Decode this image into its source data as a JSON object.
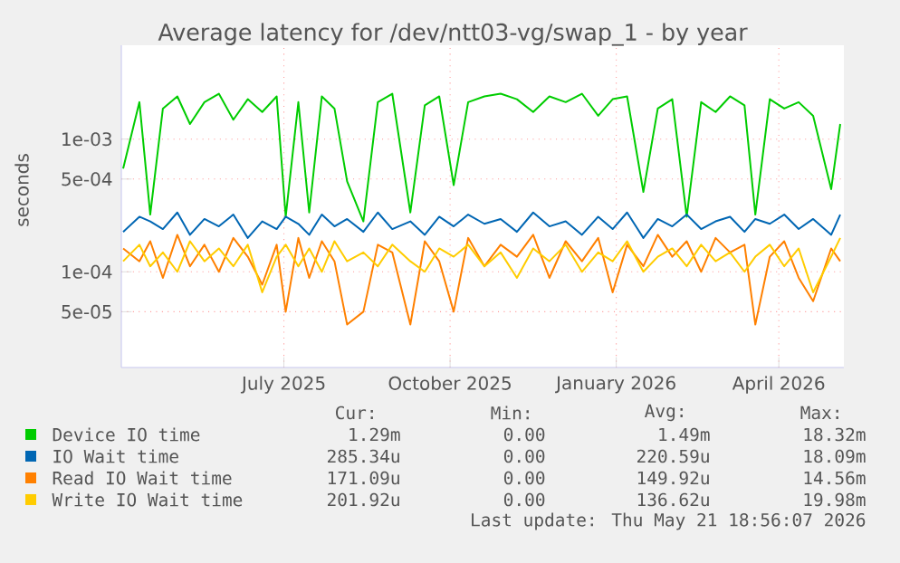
{
  "chart_data": {
    "type": "line",
    "title": "Average latency for /dev/ntt03-vg/swap_1 - by year",
    "ylabel": "seconds",
    "x": [
      "2025-04-03",
      "2025-04-12",
      "2025-04-18",
      "2025-04-25",
      "2025-05-03",
      "2025-05-10",
      "2025-05-18",
      "2025-05-26",
      "2025-06-03",
      "2025-06-11",
      "2025-06-19",
      "2025-06-27",
      "2025-07-02",
      "2025-07-09",
      "2025-07-15",
      "2025-07-22",
      "2025-07-29",
      "2025-08-05",
      "2025-08-14",
      "2025-08-22",
      "2025-08-30",
      "2025-09-09",
      "2025-09-17",
      "2025-09-25",
      "2025-10-03",
      "2025-10-11",
      "2025-10-20",
      "2025-10-29",
      "2025-11-07",
      "2025-11-16",
      "2025-11-25",
      "2025-12-04",
      "2025-12-13",
      "2025-12-22",
      "2025-12-30",
      "2026-01-07",
      "2026-01-16",
      "2026-01-24",
      "2026-02-01",
      "2026-02-09",
      "2026-02-17",
      "2026-02-25",
      "2026-03-05",
      "2026-03-13",
      "2026-03-19",
      "2026-03-27",
      "2026-04-04",
      "2026-04-12",
      "2026-04-20",
      "2026-04-30",
      "2026-05-05"
    ],
    "series": [
      {
        "name": "Device IO time",
        "color": "#00cc00",
        "values": [
          0.0006,
          0.0019,
          0.00027,
          0.0017,
          0.0021,
          0.0013,
          0.0019,
          0.0022,
          0.0014,
          0.002,
          0.0016,
          0.0021,
          0.00026,
          0.0019,
          0.00028,
          0.0021,
          0.0017,
          0.00048,
          0.00024,
          0.0019,
          0.0022,
          0.00028,
          0.0018,
          0.0021,
          0.00045,
          0.0019,
          0.0021,
          0.0022,
          0.002,
          0.0016,
          0.0021,
          0.0019,
          0.0022,
          0.0015,
          0.002,
          0.0021,
          0.0004,
          0.0017,
          0.002,
          0.00026,
          0.0019,
          0.0016,
          0.0021,
          0.0018,
          0.00027,
          0.002,
          0.0017,
          0.0019,
          0.0015,
          0.00042,
          0.0013
        ]
      },
      {
        "name": "IO Wait time",
        "color": "#0066b3",
        "values": [
          0.0002,
          0.00026,
          0.00024,
          0.00021,
          0.00028,
          0.00019,
          0.00025,
          0.00022,
          0.00027,
          0.00018,
          0.00024,
          0.00021,
          0.00026,
          0.00023,
          0.00019,
          0.00027,
          0.00022,
          0.00025,
          0.0002,
          0.00028,
          0.00021,
          0.00024,
          0.00019,
          0.00026,
          0.00022,
          0.00027,
          0.00023,
          0.00025,
          0.0002,
          0.00028,
          0.00022,
          0.00024,
          0.00019,
          0.00026,
          0.00021,
          0.00028,
          0.00018,
          0.00025,
          0.00022,
          0.00027,
          0.00021,
          0.00024,
          0.00026,
          0.0002,
          0.00025,
          0.00023,
          0.00027,
          0.00021,
          0.00025,
          0.00019,
          0.00027
        ]
      },
      {
        "name": "Read IO Wait time",
        "color": "#ff8000",
        "values": [
          0.00015,
          0.00012,
          0.00017,
          9e-05,
          0.00019,
          0.00011,
          0.00016,
          0.0001,
          0.00018,
          0.00013,
          8e-05,
          0.00016,
          5e-05,
          0.00018,
          9e-05,
          0.00017,
          0.00012,
          4e-05,
          5e-05,
          0.00016,
          0.00014,
          4e-05,
          0.00017,
          0.00012,
          5e-05,
          0.00018,
          0.00011,
          0.00016,
          0.00013,
          0.00019,
          9e-05,
          0.00017,
          0.00012,
          0.00018,
          7e-05,
          0.00016,
          0.00011,
          0.00019,
          0.00013,
          0.00017,
          0.0001,
          0.00018,
          0.00014,
          0.00016,
          4e-05,
          0.00013,
          0.00017,
          9e-05,
          6e-05,
          0.00015,
          0.00012
        ]
      },
      {
        "name": "Write IO Wait time",
        "color": "#ffcc00",
        "values": [
          0.00012,
          0.00016,
          0.00011,
          0.00014,
          0.0001,
          0.00017,
          0.00012,
          0.00015,
          0.00011,
          0.00016,
          7e-05,
          0.00013,
          0.00016,
          0.00011,
          0.00015,
          0.0001,
          0.00017,
          0.00012,
          0.00014,
          0.00011,
          0.00016,
          0.00012,
          0.0001,
          0.00015,
          0.00013,
          0.00016,
          0.00011,
          0.00014,
          9e-05,
          0.00015,
          0.00012,
          0.00016,
          0.0001,
          0.00014,
          0.00012,
          0.00017,
          0.0001,
          0.00013,
          0.00015,
          0.00011,
          0.00016,
          0.00012,
          0.00014,
          0.0001,
          0.00013,
          0.00016,
          0.00011,
          0.00015,
          7e-05,
          0.00013,
          0.00018
        ]
      }
    ],
    "log": "y",
    "xlim": [
      "2025-04-02",
      "2026-05-07"
    ],
    "ylim": [
      1.9e-05,
      0.0051
    ],
    "xticks": [
      {
        "value": "2025-07-01",
        "label": "July 2025"
      },
      {
        "value": "2025-10-01",
        "label": "October 2025"
      },
      {
        "value": "2026-01-01",
        "label": "January 2026"
      },
      {
        "value": "2026-04-01",
        "label": "April 2026"
      }
    ],
    "yticks": [
      {
        "value": 5e-05,
        "label": "5e-05"
      },
      {
        "value": 0.0001,
        "label": "1e-04"
      },
      {
        "value": 0.0005,
        "label": "5e-04"
      },
      {
        "value": 0.001,
        "label": "1e-03"
      }
    ],
    "grid": true,
    "legend": "bottom",
    "marker": "none",
    "line_style": "solid",
    "annotations": [
      "Cur:",
      "Min:",
      "Avg:",
      "Max:",
      "1.29m",
      "0.00",
      "1.49m",
      "18.32m",
      "285.34u",
      "0.00",
      "220.59u",
      "18.09m",
      "171.09u",
      "0.00",
      "149.92u",
      "14.56m",
      "201.92u",
      "0.00",
      "136.62u",
      "19.98m",
      "Last update: Thu May 21 18:56:07 2026"
    ]
  }
}
